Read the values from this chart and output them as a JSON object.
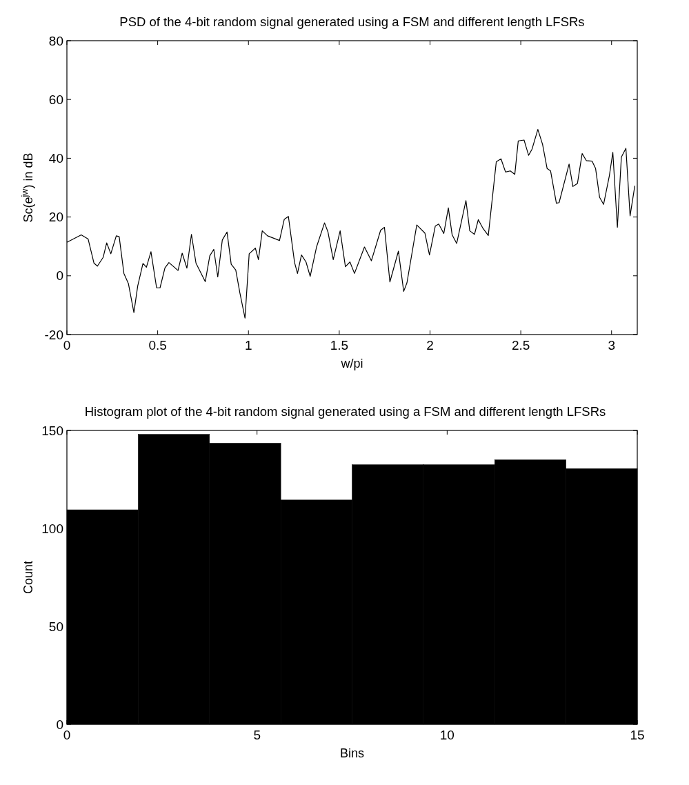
{
  "chart_data": [
    {
      "type": "line",
      "title": "PSD of the 4-bit random signal generated using a FSM and different length LFSRs",
      "xlabel": "w/pi",
      "ylabel": "Sc(e$^{jw}$) in dB",
      "x": [
        0,
        0.079,
        0.117,
        0.149,
        0.168,
        0.2,
        0.219,
        0.242,
        0.272,
        0.288,
        0.314,
        0.339,
        0.369,
        0.39,
        0.419,
        0.438,
        0.463,
        0.494,
        0.513,
        0.54,
        0.562,
        0.612,
        0.635,
        0.661,
        0.686,
        0.711,
        0.762,
        0.787,
        0.809,
        0.831,
        0.856,
        0.882,
        0.905,
        0.93,
        0.953,
        0.981,
        1.004,
        1.038,
        1.055,
        1.076,
        1.105,
        1.171,
        1.197,
        1.22,
        1.254,
        1.27,
        1.292,
        1.317,
        1.34,
        1.375,
        1.419,
        1.438,
        1.467,
        1.505,
        1.534,
        1.559,
        1.584,
        1.639,
        1.677,
        1.728,
        1.749,
        1.779,
        1.826,
        1.855,
        1.873,
        1.927,
        1.972,
        1.997,
        2.029,
        2.048,
        2.076,
        2.101,
        2.122,
        2.147,
        2.198,
        2.219,
        2.245,
        2.266,
        2.292,
        2.321,
        2.365,
        2.391,
        2.416,
        2.442,
        2.467,
        2.486,
        2.518,
        2.543,
        2.562,
        2.594,
        2.62,
        2.645,
        2.664,
        2.696,
        2.711,
        2.766,
        2.787,
        2.812,
        2.838,
        2.861,
        2.893,
        2.912,
        2.934,
        2.956,
        2.988,
        3.007,
        3.032,
        3.054,
        3.079,
        3.102,
        3.128
      ],
      "series": [
        {
          "color": "#000000",
          "values": [
            11.4,
            13.9,
            12.5,
            4.3,
            3.3,
            6.3,
            11.2,
            7.5,
            13.6,
            13.3,
            0.8,
            -2.7,
            -12.5,
            -3.5,
            4.2,
            2.9,
            8.2,
            -4.1,
            -4.1,
            2.7,
            4.5,
            1.8,
            7.7,
            2.6,
            14.1,
            4.3,
            -2,
            6.8,
            9,
            -0.4,
            12.2,
            14.9,
            3.9,
            2,
            -5.9,
            -14.4,
            7.5,
            9.4,
            5.5,
            15.3,
            13.6,
            12,
            19.2,
            20.2,
            4.5,
            0.8,
            7.1,
            4.7,
            -0.2,
            9.8,
            18,
            14.9,
            5.5,
            15.3,
            3.1,
            4.7,
            0.8,
            9.8,
            5.1,
            15.5,
            16.5,
            -2.1,
            8.4,
            -5.3,
            -2.4,
            17.3,
            14.5,
            7.1,
            16.9,
            17.6,
            14.4,
            23.1,
            13.9,
            11,
            25.6,
            15.3,
            14.1,
            19.1,
            16.1,
            13.7,
            38.8,
            39.8,
            35.3,
            35.7,
            34.5,
            45.9,
            46.2,
            41,
            43.1,
            49.8,
            44.7,
            36.5,
            35.7,
            24.7,
            24.9,
            38,
            30.4,
            31.4,
            41.6,
            39.2,
            39,
            36.5,
            26.7,
            24.3,
            34.1,
            42,
            16.5,
            40.4,
            43.4,
            20.4,
            30.6
          ]
        }
      ],
      "xlim": [
        0,
        3.1416
      ],
      "xticks": [
        0,
        0.5,
        1,
        1.5,
        2,
        2.5,
        3
      ],
      "ylim": [
        -20,
        80
      ],
      "yticks": [
        -20,
        0,
        20,
        40,
        60,
        80
      ],
      "grid": false
    },
    {
      "type": "histogram",
      "title": "Histogram plot of the 4-bit random signal generated using a FSM and different length LFSRs",
      "xlabel": "Bins",
      "ylabel": "Count",
      "bins": [
        0,
        1.875,
        3.75,
        5.625,
        7.5,
        9.375,
        11.25,
        13.125,
        15
      ],
      "values": [
        109.5,
        148,
        143.5,
        114.5,
        132.5,
        132.5,
        135,
        130.5
      ],
      "color": "#000000",
      "xlim": [
        0,
        15
      ],
      "xticks": [
        0,
        5,
        10,
        15
      ],
      "ylim": [
        0,
        150
      ],
      "yticks": [
        0,
        50,
        100,
        150
      ],
      "grid": false
    }
  ]
}
